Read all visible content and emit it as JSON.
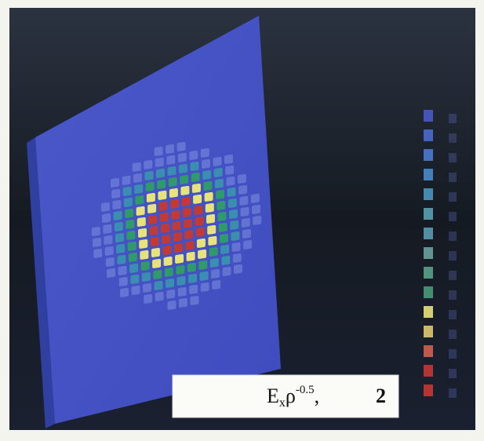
{
  "caption": {
    "symbol": "E",
    "subscript": "x",
    "variable": "ρ",
    "exponent": "-0.5",
    "separator": ",",
    "number": "2"
  }
}
